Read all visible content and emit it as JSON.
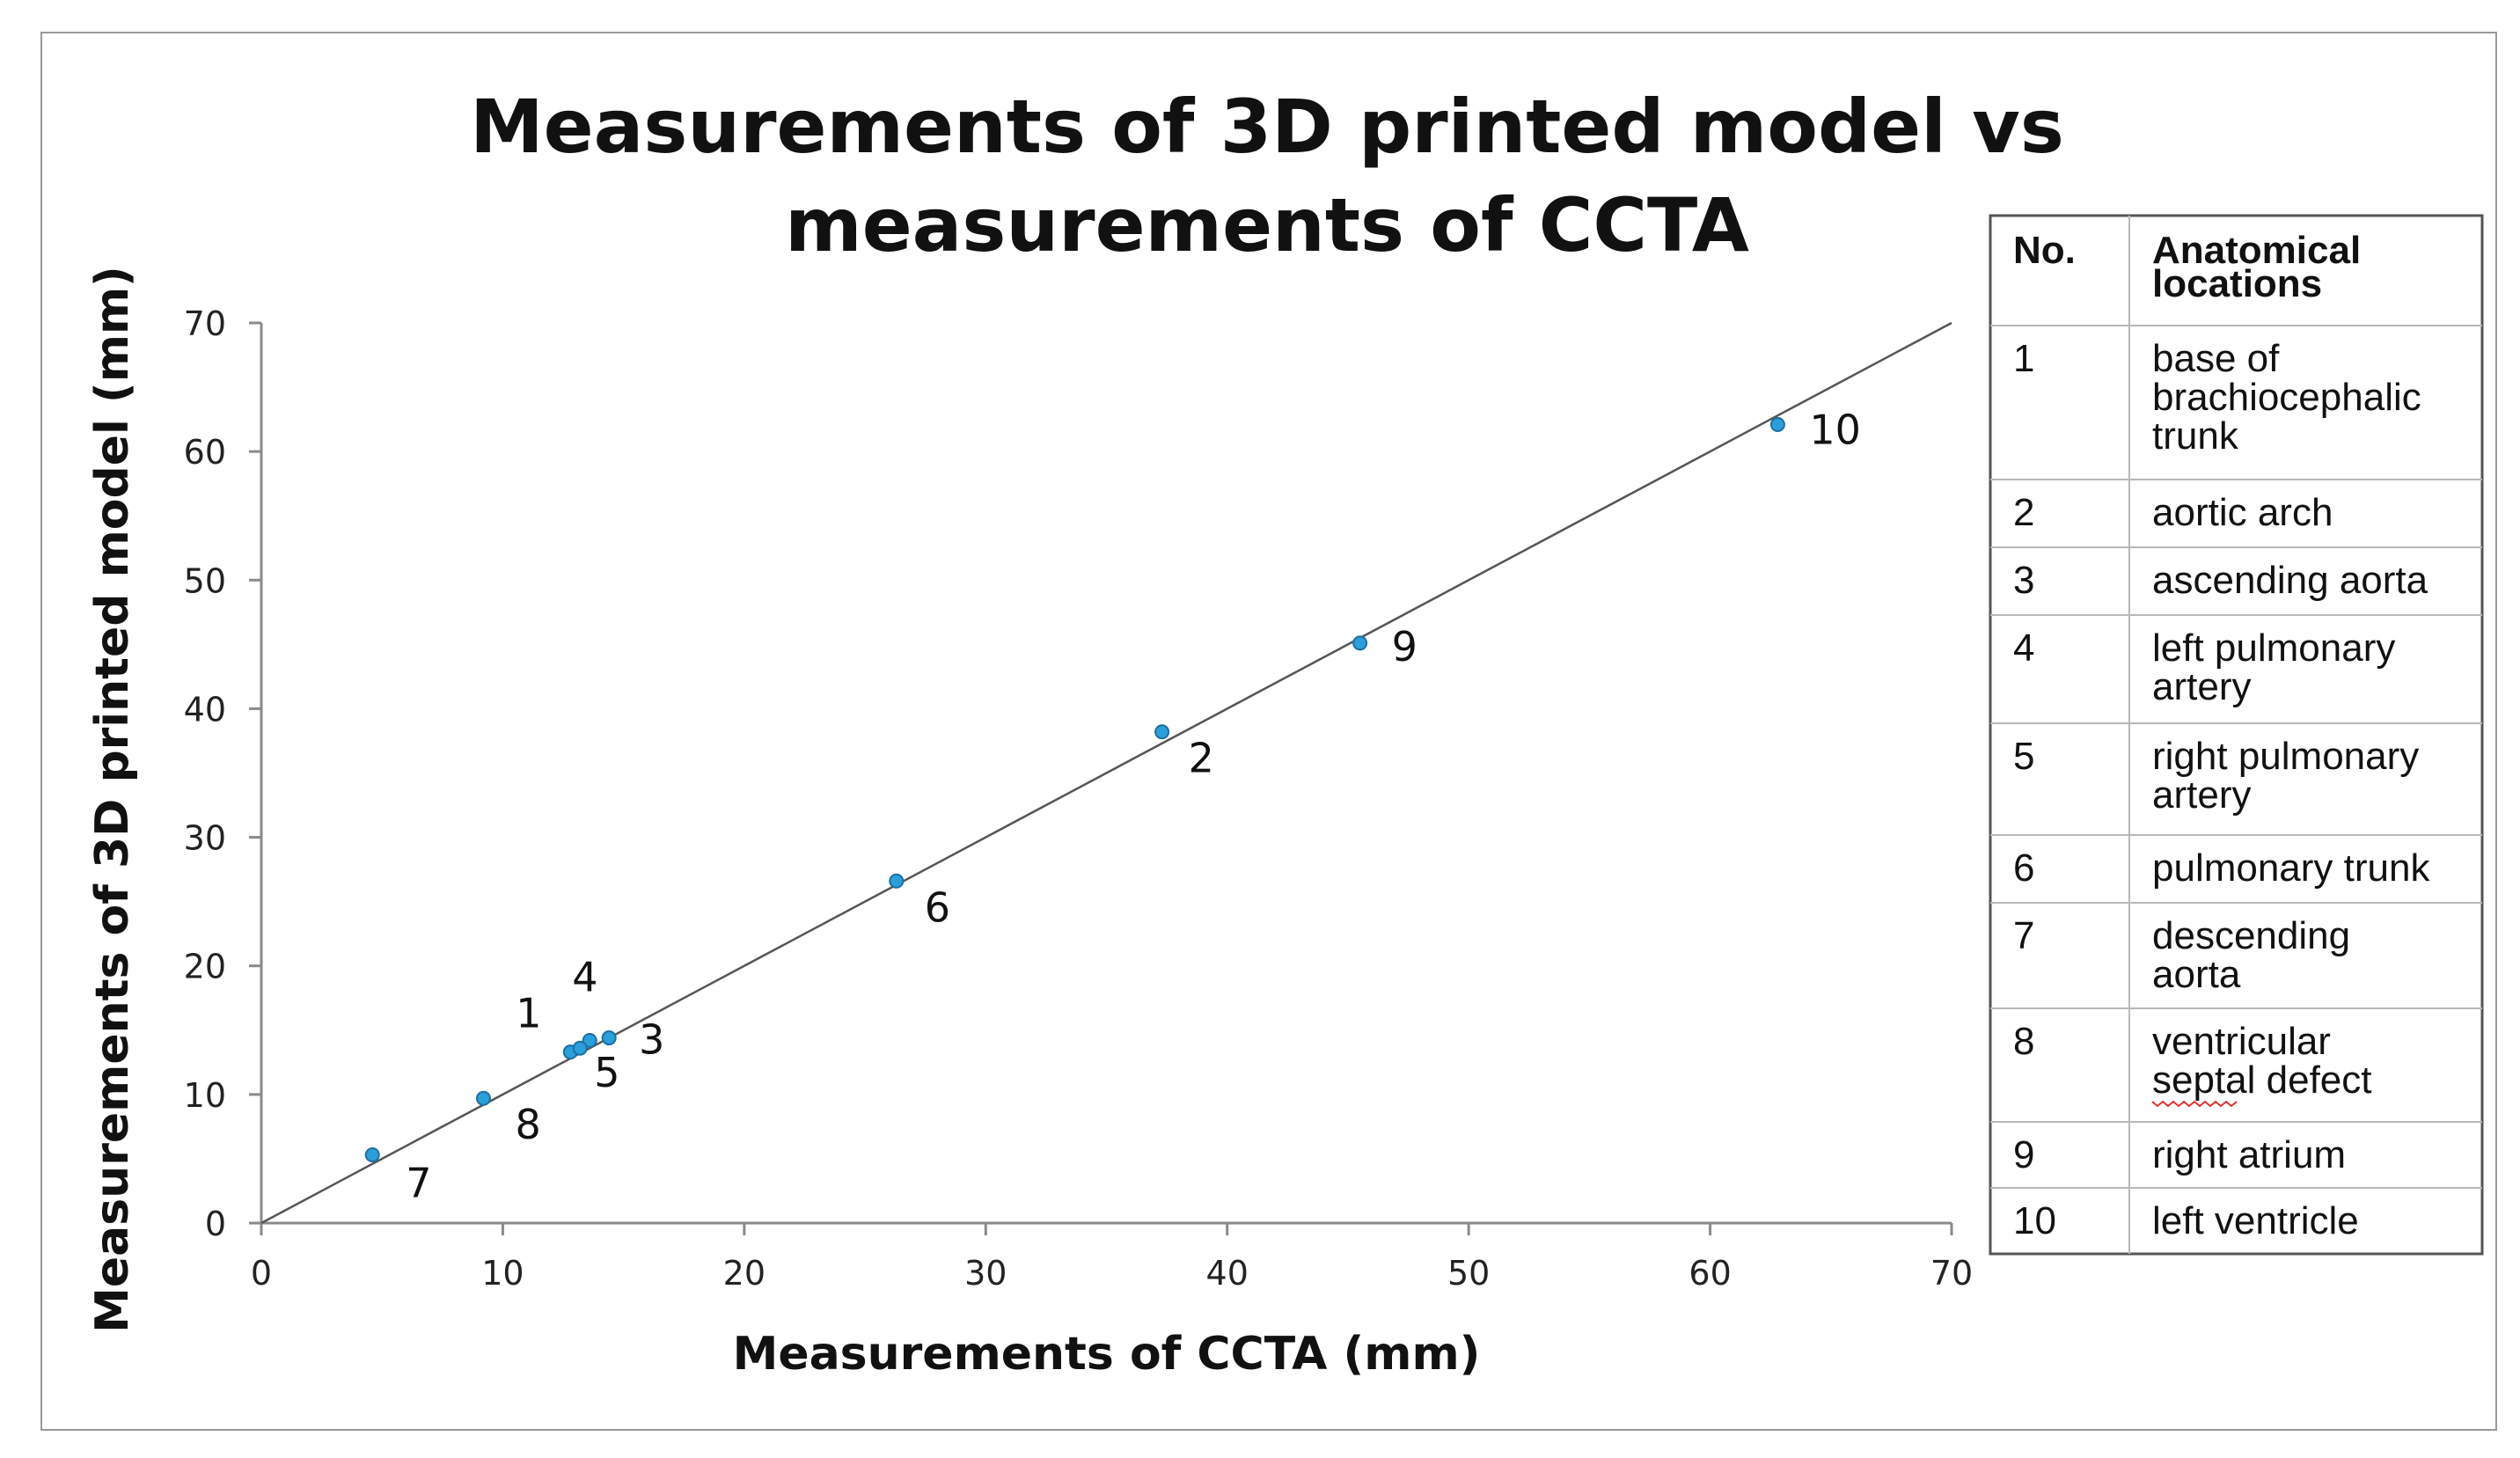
{
  "chart_data": {
    "type": "scatter",
    "title": "Measurements of 3D printed model vs measurements of CCTA",
    "title_lines": [
      "Measurements of 3D printed model vs",
      "measurements of CCTA"
    ],
    "xlabel": "Measurements of CCTA (mm)",
    "ylabel": "Measurements of 3D printed model (mm)",
    "xlim": [
      0,
      70
    ],
    "ylim": [
      0,
      70
    ],
    "xticks": [
      0,
      10,
      20,
      30,
      40,
      50,
      60,
      70
    ],
    "yticks": [
      0,
      10,
      20,
      30,
      40,
      50,
      60,
      70
    ],
    "grid": false,
    "marker_color": "#2b9fd9",
    "line_color": "#555555",
    "reference_line": {
      "from": [
        0,
        0
      ],
      "to": [
        70,
        70
      ]
    },
    "points": [
      {
        "label": "1",
        "x": 12.8,
        "y": 13.3
      },
      {
        "label": "2",
        "x": 37.3,
        "y": 38.2
      },
      {
        "label": "3",
        "x": 14.4,
        "y": 14.4
      },
      {
        "label": "4",
        "x": 13.6,
        "y": 14.2
      },
      {
        "label": "5",
        "x": 13.2,
        "y": 13.6
      },
      {
        "label": "6",
        "x": 26.3,
        "y": 26.6
      },
      {
        "label": "7",
        "x": 4.6,
        "y": 5.3
      },
      {
        "label": "8",
        "x": 9.2,
        "y": 9.7
      },
      {
        "label": "9",
        "x": 45.5,
        "y": 45.1
      },
      {
        "label": "10",
        "x": 62.8,
        "y": 62.1
      }
    ]
  },
  "legend_table": {
    "headers": [
      "No.",
      [
        "Anatomical",
        "locations"
      ]
    ],
    "rows": [
      {
        "no": "1",
        "lines": [
          "base of",
          "brachiocephalic",
          "trunk"
        ]
      },
      {
        "no": "2",
        "lines": [
          "aortic arch"
        ]
      },
      {
        "no": "3",
        "lines": [
          "ascending aorta"
        ]
      },
      {
        "no": "4",
        "lines": [
          "left pulmonary",
          "artery"
        ]
      },
      {
        "no": "5",
        "lines": [
          "right pulmonary",
          "artery"
        ]
      },
      {
        "no": "6",
        "lines": [
          "pulmonary trunk"
        ]
      },
      {
        "no": "7",
        "lines": [
          "descending",
          "aorta"
        ]
      },
      {
        "no": "8",
        "lines": [
          "ventricular",
          "septal defect"
        ]
      },
      {
        "no": "9",
        "lines": [
          "right atrium"
        ]
      },
      {
        "no": "10",
        "lines": [
          "left ventricle"
        ]
      }
    ]
  }
}
